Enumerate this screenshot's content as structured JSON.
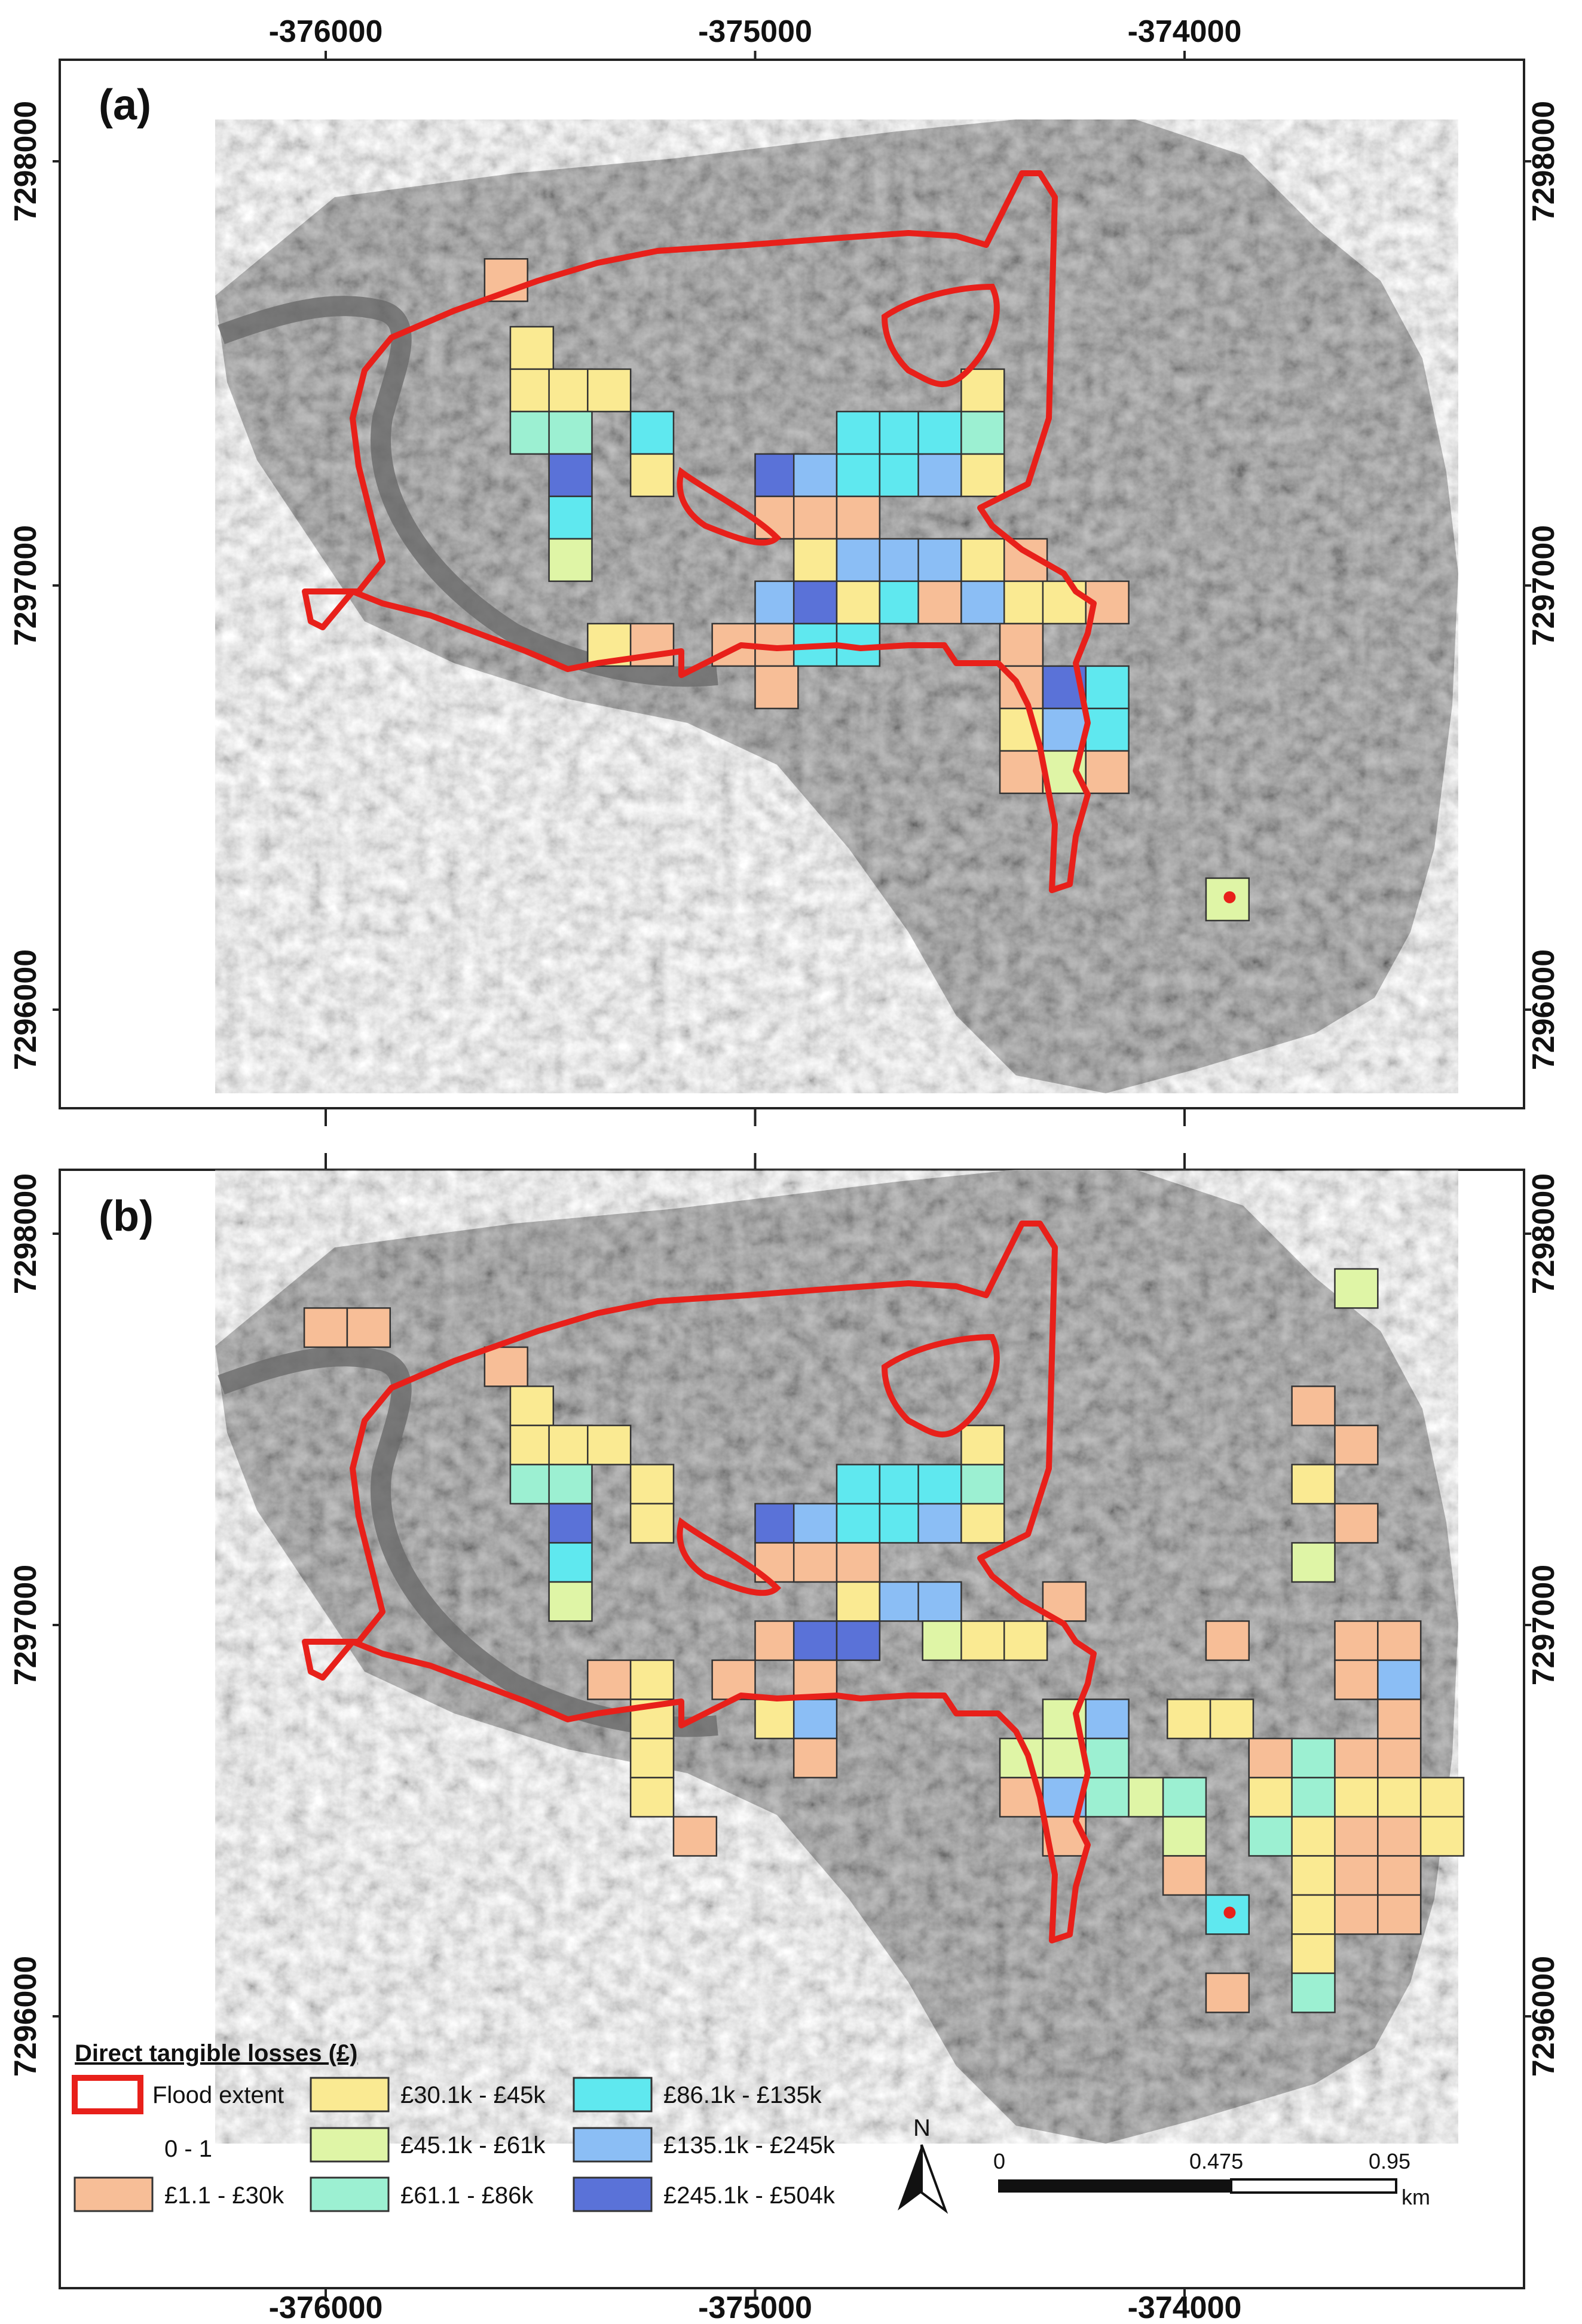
{
  "colors": {
    "flood": "#e8201a",
    "classes": [
      "#f7be97",
      "#faea92",
      "#dff5a6",
      "#9cf0d2",
      "#5fe8ef",
      "#8bbef5",
      "#5a72d8"
    ],
    "frame": "#222222",
    "cell_stroke": "#333333",
    "basemap_dark": "#6e6e6e",
    "basemap_light": "#b9b9b9"
  },
  "axes": {
    "x_ticks": [
      "-376000",
      "-375000",
      "-374000"
    ],
    "y_ticks": [
      "7298000",
      "7297000",
      "7296000"
    ],
    "x_range": [
      -376650,
      -373600
    ],
    "y_range": [
      7295780,
      7298210
    ]
  },
  "panels": [
    {
      "label": "(a)",
      "cells": [
        [
          -375580,
          7297720,
          1
        ],
        [
          -375520,
          7297560,
          2
        ],
        [
          -375520,
          7297460,
          2
        ],
        [
          -375430,
          7297460,
          2
        ],
        [
          -375340,
          7297460,
          2
        ],
        [
          -375520,
          7297360,
          4
        ],
        [
          -375430,
          7297360,
          4
        ],
        [
          -375430,
          7297260,
          7
        ],
        [
          -375430,
          7297160,
          5
        ],
        [
          -375430,
          7297060,
          3
        ],
        [
          -375240,
          7297360,
          5
        ],
        [
          -375240,
          7297260,
          2
        ],
        [
          -375340,
          7296860,
          2
        ],
        [
          -375240,
          7296860,
          1
        ],
        [
          -374950,
          7297260,
          7
        ],
        [
          -374860,
          7297260,
          6
        ],
        [
          -374760,
          7297260,
          5
        ],
        [
          -374660,
          7297260,
          5
        ],
        [
          -374570,
          7297260,
          6
        ],
        [
          -374470,
          7297260,
          2
        ],
        [
          -374760,
          7297360,
          5
        ],
        [
          -374660,
          7297360,
          5
        ],
        [
          -374570,
          7297360,
          5
        ],
        [
          -374470,
          7297360,
          4
        ],
        [
          -374470,
          7297460,
          2
        ],
        [
          -374950,
          7297160,
          1
        ],
        [
          -374860,
          7297160,
          1
        ],
        [
          -374760,
          7297160,
          1
        ],
        [
          -374860,
          7297060,
          2
        ],
        [
          -374760,
          7297060,
          6
        ],
        [
          -374660,
          7297060,
          6
        ],
        [
          -374570,
          7297060,
          6
        ],
        [
          -374470,
          7297060,
          2
        ],
        [
          -374370,
          7297060,
          1
        ],
        [
          -374950,
          7296960,
          6
        ],
        [
          -374860,
          7296960,
          7
        ],
        [
          -374760,
          7296960,
          2
        ],
        [
          -374660,
          7296960,
          5
        ],
        [
          -374570,
          7296960,
          1
        ],
        [
          -374470,
          7296960,
          6
        ],
        [
          -374370,
          7296960,
          2
        ],
        [
          -374280,
          7296960,
          2
        ],
        [
          -374180,
          7296960,
          1
        ],
        [
          -375050,
          7296860,
          1
        ],
        [
          -374950,
          7296860,
          1
        ],
        [
          -374860,
          7296860,
          5
        ],
        [
          -374760,
          7296860,
          5
        ],
        [
          -374380,
          7296860,
          1
        ],
        [
          -374950,
          7296760,
          1
        ],
        [
          -374380,
          7296760,
          1
        ],
        [
          -374280,
          7296760,
          7
        ],
        [
          -374180,
          7296760,
          5
        ],
        [
          -374380,
          7296660,
          2
        ],
        [
          -374280,
          7296660,
          6
        ],
        [
          -374180,
          7296660,
          5
        ],
        [
          -374380,
          7296560,
          1
        ],
        [
          -374280,
          7296560,
          3
        ],
        [
          -374180,
          7296560,
          1
        ],
        [
          -373900,
          7296260,
          3
        ]
      ],
      "dots": [
        [
          -373895,
          7296265
        ]
      ]
    },
    {
      "label": "(b)",
      "cells": [
        [
          -376000,
          7297760,
          1
        ],
        [
          -375900,
          7297760,
          1
        ],
        [
          -375580,
          7297660,
          1
        ],
        [
          -375520,
          7297560,
          2
        ],
        [
          -375520,
          7297460,
          2
        ],
        [
          -375430,
          7297460,
          2
        ],
        [
          -375340,
          7297460,
          2
        ],
        [
          -375520,
          7297360,
          4
        ],
        [
          -375430,
          7297360,
          4
        ],
        [
          -375430,
          7297260,
          7
        ],
        [
          -375430,
          7297160,
          5
        ],
        [
          -375430,
          7297060,
          3
        ],
        [
          -375240,
          7297360,
          2
        ],
        [
          -375240,
          7297260,
          2
        ],
        [
          -374950,
          7297260,
          7
        ],
        [
          -374860,
          7297260,
          6
        ],
        [
          -374760,
          7297260,
          5
        ],
        [
          -374660,
          7297260,
          5
        ],
        [
          -374570,
          7297260,
          6
        ],
        [
          -374470,
          7297260,
          2
        ],
        [
          -374760,
          7297360,
          5
        ],
        [
          -374660,
          7297360,
          5
        ],
        [
          -374570,
          7297360,
          5
        ],
        [
          -374470,
          7297360,
          4
        ],
        [
          -374470,
          7297460,
          2
        ],
        [
          -374950,
          7297160,
          1
        ],
        [
          -374860,
          7297160,
          1
        ],
        [
          -374760,
          7297160,
          1
        ],
        [
          -374760,
          7297060,
          2
        ],
        [
          -374660,
          7297060,
          6
        ],
        [
          -374570,
          7297060,
          6
        ],
        [
          -374950,
          7296960,
          1
        ],
        [
          -374860,
          7296960,
          7
        ],
        [
          -374760,
          7296960,
          7
        ],
        [
          -374560,
          7296960,
          3
        ],
        [
          -374470,
          7296960,
          2
        ],
        [
          -374370,
          7296960,
          2
        ],
        [
          -374280,
          7297060,
          1
        ],
        [
          -375340,
          7296860,
          1
        ],
        [
          -375240,
          7296860,
          2
        ],
        [
          -375240,
          7296760,
          2
        ],
        [
          -375240,
          7296660,
          2
        ],
        [
          -375240,
          7296560,
          2
        ],
        [
          -375140,
          7296460,
          1
        ],
        [
          -375050,
          7296860,
          1
        ],
        [
          -374950,
          7296760,
          2
        ],
        [
          -374860,
          7296760,
          6
        ],
        [
          -374860,
          7296860,
          1
        ],
        [
          -374860,
          7296660,
          1
        ],
        [
          -374280,
          7296760,
          3
        ],
        [
          -374180,
          7296760,
          6
        ],
        [
          -374380,
          7296660,
          3
        ],
        [
          -374280,
          7296660,
          3
        ],
        [
          -374180,
          7296660,
          4
        ],
        [
          -374380,
          7296560,
          1
        ],
        [
          -374280,
          7296560,
          6
        ],
        [
          -374180,
          7296560,
          4
        ],
        [
          -374080,
          7296560,
          3
        ],
        [
          -374280,
          7296460,
          1
        ],
        [
          -374000,
          7296560,
          4
        ],
        [
          -374000,
          7296460,
          3
        ],
        [
          -374000,
          7296360,
          1
        ],
        [
          -373990,
          7296760,
          2
        ],
        [
          -373890,
          7296760,
          2
        ],
        [
          -373900,
          7296960,
          1
        ],
        [
          -373900,
          7296260,
          5
        ],
        [
          -373800,
          7296660,
          1
        ],
        [
          -373700,
          7296660,
          4
        ],
        [
          -373600,
          7296660,
          1
        ],
        [
          -373500,
          7296660,
          1
        ],
        [
          -373800,
          7296560,
          2
        ],
        [
          -373700,
          7296560,
          4
        ],
        [
          -373600,
          7296560,
          2
        ],
        [
          -373500,
          7296560,
          2
        ],
        [
          -373400,
          7296560,
          2
        ],
        [
          -373800,
          7296460,
          4
        ],
        [
          -373700,
          7296460,
          2
        ],
        [
          -373600,
          7296460,
          1
        ],
        [
          -373500,
          7296460,
          1
        ],
        [
          -373400,
          7296460,
          2
        ],
        [
          -373700,
          7296360,
          2
        ],
        [
          -373600,
          7296360,
          1
        ],
        [
          -373500,
          7296360,
          1
        ],
        [
          -373700,
          7296260,
          2
        ],
        [
          -373600,
          7296260,
          1
        ],
        [
          -373500,
          7296260,
          1
        ],
        [
          -373700,
          7296160,
          2
        ],
        [
          -373700,
          7296060,
          4
        ],
        [
          -373900,
          7296060,
          1
        ],
        [
          -373600,
          7296960,
          1
        ],
        [
          -373500,
          7296960,
          1
        ],
        [
          -373600,
          7296860,
          1
        ],
        [
          -373500,
          7296860,
          6
        ],
        [
          -373500,
          7296760,
          1
        ],
        [
          -373700,
          7297560,
          1
        ],
        [
          -373600,
          7297460,
          1
        ],
        [
          -373700,
          7297360,
          2
        ],
        [
          -373600,
          7297260,
          1
        ],
        [
          -373700,
          7297160,
          3
        ],
        [
          -373600,
          7297860,
          3
        ]
      ],
      "dots": [
        [
          -373895,
          7296265
        ]
      ]
    }
  ],
  "legend": {
    "title": "Direct tangible losses (£)",
    "flood_label": "Flood extent",
    "zero_label": "0 - 1",
    "classes": [
      "£1.1 - £30k",
      "£30.1k - £45k",
      "£45.1k - £61k",
      "£61.1 - £86k",
      "£86.1k - £135k",
      "£135.1k - £245k",
      "£245.1k - £504k"
    ]
  },
  "north": {
    "label": "N"
  },
  "scale": {
    "labels": [
      "0",
      "0.475",
      "0.95"
    ],
    "unit": "km"
  }
}
